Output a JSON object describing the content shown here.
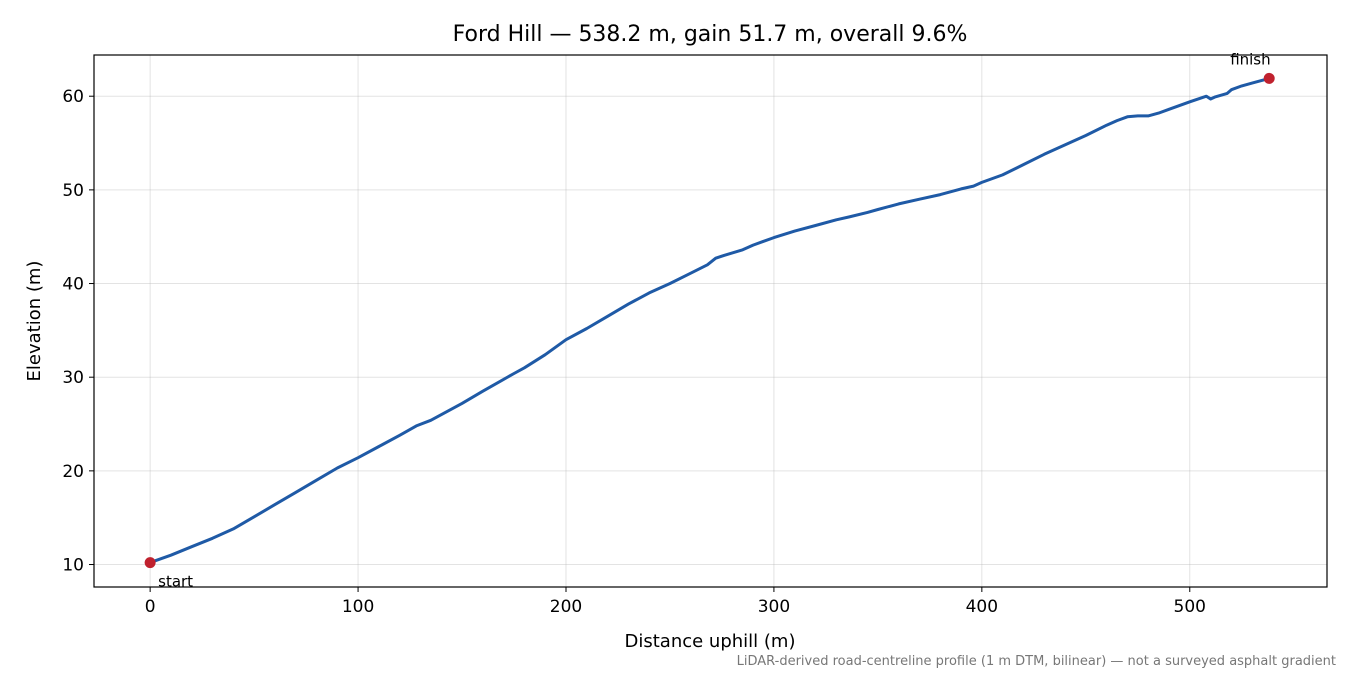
{
  "chart_data": {
    "type": "line",
    "title": "Ford Hill — 538.2 m, gain 51.7 m, overall 9.6%",
    "xlabel": "Distance uphill (m)",
    "ylabel": "Elevation (m)",
    "xlim": [
      -27,
      566
    ],
    "ylim": [
      7.6,
      64.4
    ],
    "xticks": [
      0,
      100,
      200,
      300,
      400,
      500
    ],
    "yticks": [
      10,
      20,
      30,
      40,
      50,
      60
    ],
    "grid": true,
    "series": [
      {
        "color": "#1f5aa6",
        "x": [
          0,
          10,
          20,
          30,
          40,
          50,
          60,
          70,
          80,
          90,
          100,
          110,
          120,
          128,
          135,
          150,
          160,
          175,
          180,
          190,
          200,
          210,
          220,
          230,
          240,
          250,
          260,
          268,
          272,
          276,
          285,
          290,
          300,
          310,
          320,
          330,
          336,
          345,
          350,
          360,
          370,
          380,
          390,
          396,
          400,
          410,
          420,
          430,
          440,
          450,
          460,
          465,
          470,
          475,
          480,
          485,
          490,
          500,
          508,
          510,
          512,
          518,
          520,
          525,
          530,
          538.2
        ],
        "y": [
          10.2,
          11.0,
          11.9,
          12.8,
          13.8,
          15.1,
          16.4,
          17.7,
          19.0,
          20.3,
          21.4,
          22.6,
          23.8,
          24.8,
          25.4,
          27.2,
          28.5,
          30.4,
          31.0,
          32.4,
          34.0,
          35.2,
          36.5,
          37.8,
          39.0,
          40.0,
          41.1,
          42.0,
          42.7,
          43.0,
          43.6,
          44.1,
          44.9,
          45.6,
          46.2,
          46.8,
          47.1,
          47.6,
          47.9,
          48.5,
          49.0,
          49.5,
          50.1,
          50.4,
          50.8,
          51.6,
          52.7,
          53.8,
          54.8,
          55.8,
          56.9,
          57.4,
          57.8,
          57.9,
          57.9,
          58.2,
          58.6,
          59.4,
          60.0,
          59.7,
          59.9,
          60.3,
          60.7,
          61.1,
          61.4,
          61.9
        ]
      }
    ],
    "markers": [
      {
        "label": "start",
        "x": 0,
        "y": 10.2,
        "color": "#c0212e"
      },
      {
        "label": "finish",
        "x": 538.2,
        "y": 61.9,
        "color": "#c0212e"
      }
    ],
    "note": "LiDAR-derived road-centreline profile (1 m DTM, bilinear) — not a surveyed asphalt gradient"
  }
}
